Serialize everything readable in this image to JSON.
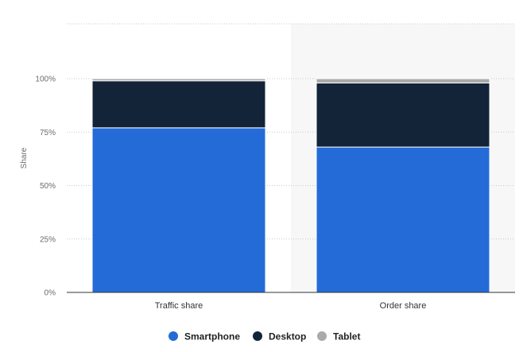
{
  "chart_data": {
    "type": "bar",
    "stacked": true,
    "categories": [
      "Traffic share",
      "Order share"
    ],
    "series": [
      {
        "name": "Smartphone",
        "values": [
          77,
          68
        ],
        "color": "#246bd8"
      },
      {
        "name": "Desktop",
        "values": [
          22,
          30
        ],
        "color": "#132438"
      },
      {
        "name": "Tablet",
        "values": [
          1,
          2
        ],
        "color": "#aaaaaa"
      }
    ],
    "ylabel": "Share",
    "ylim": [
      0,
      100
    ],
    "yticks": [
      "0%",
      "25%",
      "50%",
      "75%",
      "100%"
    ],
    "grid": true,
    "legend": "bottom-center",
    "highlighted_category": "Order share",
    "highlight_color": "#f7f7f7"
  }
}
